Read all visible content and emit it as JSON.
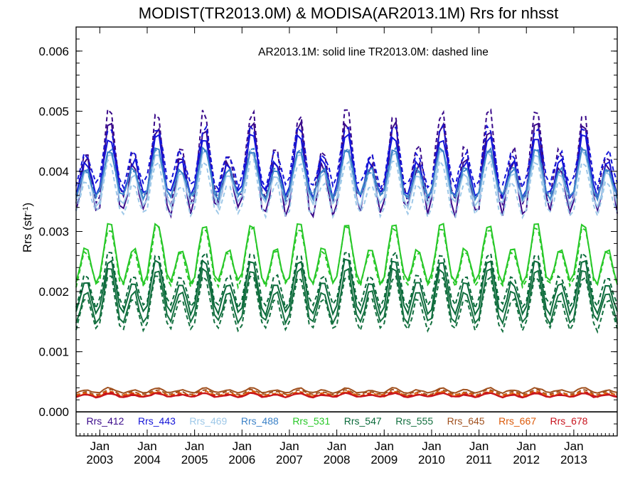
{
  "chart_data": {
    "type": "line",
    "title": "MODIST(TR2013.0M) & MODISA(AR2013.1M)  Rrs for nhsst",
    "ylabel": "Rrs (str",
    "ylabel_sup": "-1",
    "ylabel_close": ")",
    "annotation": "AR2013.1M: solid line   TR2013.0M: dashed line",
    "ylim": [
      -0.0004,
      0.0064
    ],
    "yticks": [
      "0.000",
      "0.001",
      "0.002",
      "0.003",
      "0.004",
      "0.005",
      "0.006"
    ],
    "ytick_values": [
      0,
      0.001,
      0.002,
      0.003,
      0.004,
      0.005,
      0.006
    ],
    "x_start_year": 2002,
    "x_start_month": 7,
    "n_months": 138,
    "xticks": [
      {
        "top": "Jan",
        "bottom": "2003"
      },
      {
        "top": "Jan",
        "bottom": "2004"
      },
      {
        "top": "Jan",
        "bottom": "2005"
      },
      {
        "top": "Jan",
        "bottom": "2006"
      },
      {
        "top": "Jan",
        "bottom": "2007"
      },
      {
        "top": "Jan",
        "bottom": "2008"
      },
      {
        "top": "Jan",
        "bottom": "2009"
      },
      {
        "top": "Jan",
        "bottom": "2010"
      },
      {
        "top": "Jan",
        "bottom": "2011"
      },
      {
        "top": "Jan",
        "bottom": "2012"
      },
      {
        "top": "Jan",
        "bottom": "2013"
      }
    ],
    "line_styles": {
      "AR2013.1M": "solid",
      "TR2013.0M": "dashed"
    },
    "series": [
      {
        "name": "Rrs_412",
        "color": "#3a0a8a",
        "base": 0.0039,
        "amp": 0.0009,
        "ar_offset": 0.0,
        "tr_offset": 0.0002,
        "noise": 0.00025
      },
      {
        "name": "Rrs_443",
        "color": "#1414d8",
        "base": 0.004,
        "amp": 0.0006,
        "ar_offset": 0.0,
        "tr_offset": 0.00015,
        "noise": 0.00015
      },
      {
        "name": "Rrs_469",
        "color": "#9ec8e8",
        "base": 0.0038,
        "amp": 0.00055,
        "ar_offset": 0.0,
        "tr_offset": -0.00015,
        "noise": 0.00012
      },
      {
        "name": "Rrs_488",
        "color": "#3c82c8",
        "base": 0.0039,
        "amp": 0.0005,
        "ar_offset": 0.0,
        "tr_offset": 0.0,
        "noise": 0.0001
      },
      {
        "name": "Rrs_531",
        "color": "#28c828",
        "base": 0.00255,
        "amp": 0.0006,
        "ar_offset": 0.0,
        "tr_offset": -5e-05,
        "noise": 8e-05
      },
      {
        "name": "Rrs_547",
        "color": "#0a6a3a",
        "base": 0.002,
        "amp": 0.00055,
        "ar_offset": 0.0,
        "tr_offset": 0.00012,
        "noise": 8e-05
      },
      {
        "name": "Rrs_555",
        "color": "#147040",
        "base": 0.00185,
        "amp": 0.00055,
        "ar_offset": 0.0,
        "tr_offset": -0.00012,
        "noise": 8e-05
      },
      {
        "name": "Rrs_645",
        "color": "#a0501e",
        "base": 0.00032,
        "amp": 5e-05,
        "ar_offset": 3e-05,
        "tr_offset": 0.0,
        "noise": 2e-05
      },
      {
        "name": "Rrs_667",
        "color": "#dc5a0a",
        "base": 0.00028,
        "amp": 4e-05,
        "ar_offset": 0.0,
        "tr_offset": 2e-05,
        "noise": 2e-05
      },
      {
        "name": "Rrs_678",
        "color": "#c8141e",
        "base": 0.00027,
        "amp": 4e-05,
        "ar_offset": 0.0,
        "tr_offset": 1e-05,
        "noise": 2e-05
      }
    ]
  }
}
